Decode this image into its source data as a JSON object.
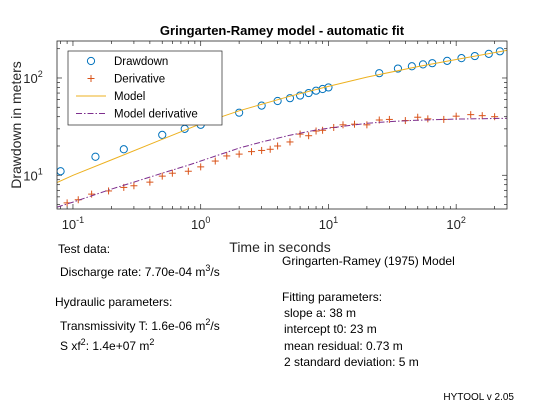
{
  "chart_data": {
    "type": "scatter",
    "title": "Gringarten-Ramey model - automatic fit",
    "xlabel": "Time in seconds",
    "ylabel": "Drawdown in meters",
    "xscale": "log",
    "yscale": "log",
    "xlim": [
      0.075,
      250
    ],
    "ylim": [
      4.5,
      240
    ],
    "x_ticks": [
      0.1,
      1,
      10,
      100
    ],
    "x_tick_labels": [
      [
        "10",
        "-1"
      ],
      [
        "10",
        "0"
      ],
      [
        "10",
        "1"
      ],
      [
        "10",
        "2"
      ]
    ],
    "y_ticks": [
      10,
      100
    ],
    "y_tick_labels": [
      [
        "10",
        "1"
      ],
      [
        "10",
        "2"
      ]
    ],
    "legend_position": "top-left",
    "series": [
      {
        "name": "Drawdown",
        "style": "marker-circle",
        "color": "#0072BD",
        "x": [
          0.08,
          0.15,
          0.25,
          0.5,
          0.75,
          1.0,
          2.0,
          3.0,
          4.0,
          5.0,
          6.0,
          7.0,
          8.0,
          9.0,
          10.0,
          25.0,
          35.0,
          45.0,
          55.0,
          65.0,
          85.0,
          110.0,
          140.0,
          180.0,
          220.0
        ],
        "y": [
          11.0,
          15.5,
          18.5,
          26.0,
          30.0,
          33.0,
          44.0,
          52.0,
          58.0,
          62.0,
          66.0,
          70.0,
          74.0,
          77.0,
          80.0,
          112.0,
          125.0,
          132.0,
          138.0,
          142.0,
          150.0,
          160.0,
          168.0,
          177.0,
          188.0
        ]
      },
      {
        "name": "Derivative",
        "style": "marker-plus",
        "color": "#D95319",
        "x": [
          0.09,
          0.11,
          0.14,
          0.19,
          0.25,
          0.3,
          0.4,
          0.5,
          0.6,
          0.8,
          1.0,
          1.3,
          1.6,
          2.0,
          2.5,
          3.0,
          3.5,
          4.0,
          5.0,
          6.0,
          7.0,
          8.0,
          9.0,
          11.0,
          13.0,
          16.0,
          20.0,
          25.0,
          30.0,
          40.0,
          50.0,
          60.0,
          80.0,
          100.0,
          130.0,
          160.0,
          200.0
        ],
        "y": [
          5.2,
          5.6,
          6.4,
          6.9,
          7.5,
          7.8,
          8.5,
          9.8,
          10.5,
          11.0,
          12.2,
          14.0,
          15.8,
          16.5,
          17.5,
          18.0,
          18.5,
          20.0,
          22.0,
          26.5,
          25.5,
          28.5,
          29.0,
          31.0,
          33.0,
          33.5,
          33.0,
          37.0,
          37.5,
          36.5,
          39.5,
          38.0,
          37.5,
          40.5,
          42.0,
          41.0,
          40.0
        ]
      },
      {
        "name": "Model",
        "style": "line",
        "color": "#EDB120",
        "x": [
          0.075,
          0.1,
          0.2,
          0.5,
          1,
          2,
          5,
          10,
          20,
          50,
          100,
          250
        ],
        "y": [
          8.4,
          10.0,
          14.4,
          23.4,
          33.8,
          46.0,
          65.0,
          82.0,
          102.0,
          131.0,
          155.0,
          192.0
        ]
      },
      {
        "name": "Model derivative",
        "style": "dashdot",
        "color": "#7E2F8E",
        "x": [
          0.075,
          0.1,
          0.2,
          0.3,
          0.5,
          0.8,
          1,
          2,
          3,
          5,
          8,
          10,
          20,
          30,
          50,
          100,
          250
        ],
        "y": [
          4.7,
          5.3,
          7.2,
          8.5,
          10.5,
          12.7,
          14.0,
          19.0,
          22.0,
          25.8,
          29.2,
          30.5,
          34.2,
          35.6,
          36.8,
          37.8,
          38.5
        ]
      }
    ]
  },
  "info": {
    "test_data_heading": "Test data:",
    "discharge_text": "Discharge rate: 7.70e-04 m",
    "discharge_exp": "3",
    "discharge_unit": "/s",
    "hydraulic_heading": "Hydraulic parameters:",
    "transmissivity_text": "Transmissivity T: 1.6e-06 m",
    "transmissivity_exp": "2",
    "transmissivity_unit": "/s",
    "sxf_prefix": "S xf",
    "sxf_exp": "2",
    "sxf_text": ": 1.4e+07 m",
    "sxf_unit_exp": "2",
    "model_name": "Gringarten-Ramey (1975) Model",
    "fitting_heading": "Fitting parameters:",
    "slope": "slope a: 38 m",
    "intercept": "intercept t0: 23 m",
    "residual": "mean residual: 0.73 m",
    "std2": "2 standard deviation: 5 m"
  },
  "version": "HYTOOL v 2.05"
}
